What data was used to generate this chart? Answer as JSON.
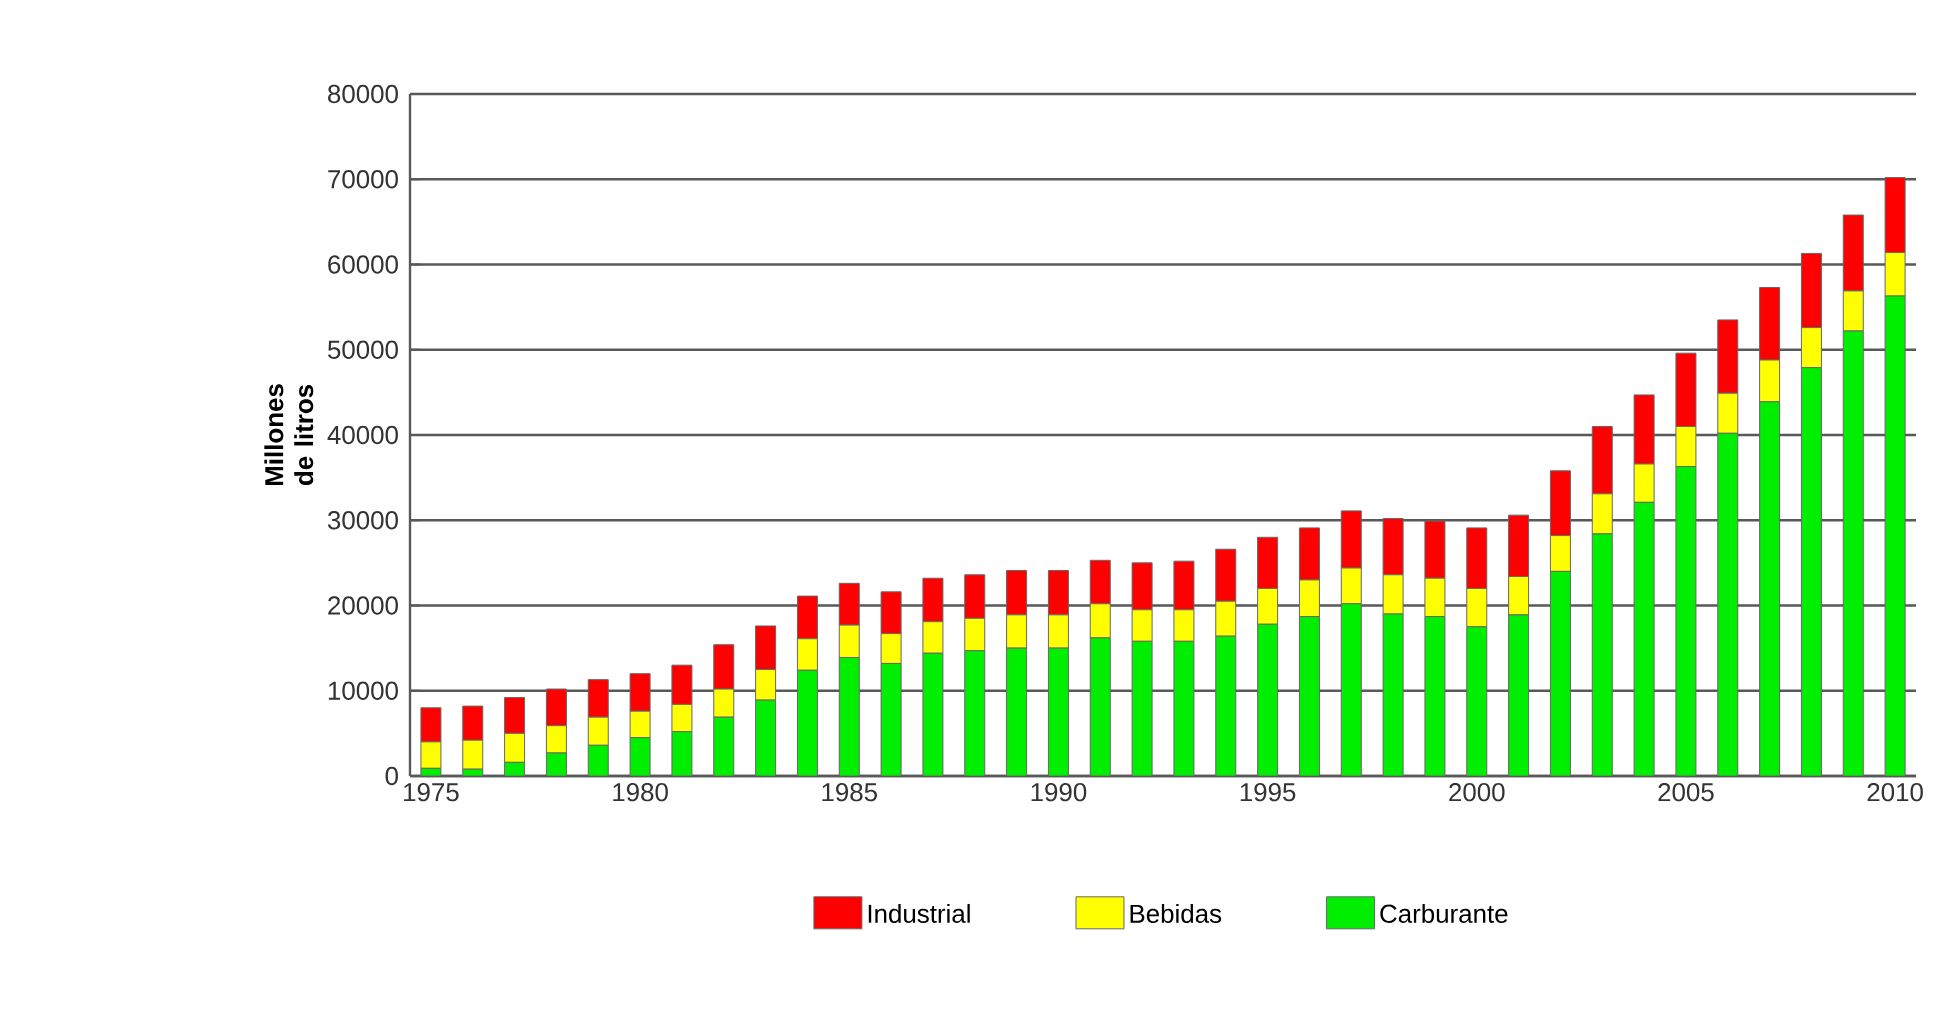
{
  "chart_data": {
    "type": "bar",
    "stacked": true,
    "ylabel": "Millones de litros",
    "categories": [
      "1975",
      null,
      null,
      null,
      null,
      "1980",
      null,
      null,
      null,
      null,
      "1985",
      null,
      null,
      null,
      null,
      "1990",
      null,
      null,
      null,
      null,
      "1995",
      null,
      null,
      null,
      null,
      "2000",
      null,
      null,
      null,
      null,
      "2005",
      null,
      null,
      null,
      null,
      "2010"
    ],
    "series": [
      {
        "name": "Carburante",
        "color": "#00ee00",
        "values": [
          900,
          800,
          1600,
          2700,
          3600,
          4500,
          5200,
          6900,
          8900,
          12400,
          13900,
          13200,
          14400,
          14700,
          15000,
          15000,
          16200,
          15800,
          15800,
          16400,
          17800,
          18700,
          20200,
          19000,
          18700,
          17500,
          18900,
          24000,
          28400,
          32100,
          36300,
          40200,
          43900,
          47900,
          52200,
          56300
        ]
      },
      {
        "name": "Bebidas",
        "color": "#ffff00",
        "values": [
          3100,
          3400,
          3400,
          3200,
          3300,
          3100,
          3200,
          3300,
          3600,
          3700,
          3800,
          3500,
          3700,
          3800,
          3900,
          3900,
          4000,
          3700,
          3700,
          4100,
          4200,
          4300,
          4200,
          4600,
          4500,
          4500,
          4500,
          4200,
          4700,
          4500,
          4700,
          4700,
          4900,
          4700,
          4700,
          5100
        ]
      },
      {
        "name": "Industrial",
        "color": "#ff0000",
        "values": [
          4000,
          4000,
          4200,
          4300,
          4400,
          4400,
          4600,
          5200,
          5100,
          5000,
          4900,
          4900,
          5100,
          5100,
          5200,
          5200,
          5100,
          5500,
          5700,
          6100,
          6000,
          6100,
          6700,
          6600,
          6700,
          7100,
          7200,
          7600,
          7900,
          8100,
          8600,
          8600,
          8500,
          8700,
          8900,
          8800
        ]
      }
    ],
    "ylim": [
      0,
      80000
    ],
    "yticks": [
      0,
      10000,
      20000,
      30000,
      40000,
      50000,
      60000,
      70000,
      80000
    ],
    "grid": "y",
    "legend": "bottom"
  }
}
